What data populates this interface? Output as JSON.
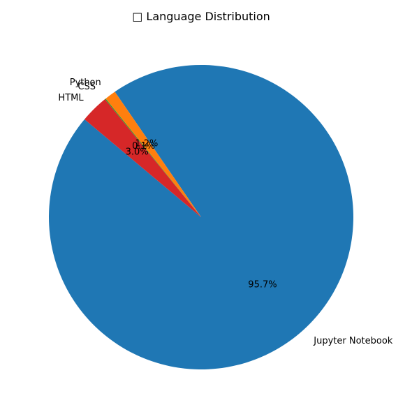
{
  "chart_data": {
    "type": "pie",
    "title": "□ Language Distribution",
    "start_angle_deg": 140,
    "direction": "counterclockwise",
    "slices": [
      {
        "label": "Jupyter Notebook",
        "value": 95.7,
        "pct_label": "95.7%",
        "color": "#1f77b4"
      },
      {
        "label": "Python",
        "value": 1.2,
        "pct_label": "1.2%",
        "color": "#ff7f0e"
      },
      {
        "label": "CSS",
        "value": 0.1,
        "pct_label": "0.1%",
        "color": "#2ca02c"
      },
      {
        "label": "HTML",
        "value": 3.0,
        "pct_label": "3.0%",
        "color": "#d62728"
      }
    ]
  }
}
